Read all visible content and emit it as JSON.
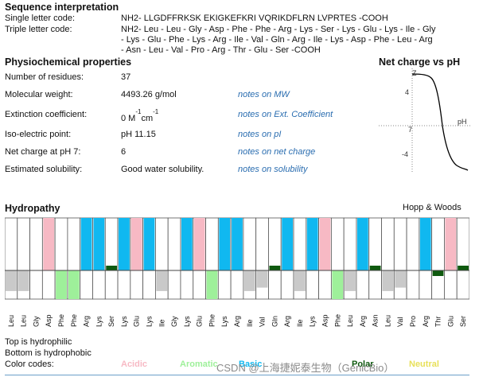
{
  "seq": {
    "title": "Sequence interpretation",
    "single_label": "Single letter code:",
    "single_value": "NH2- LLGDFFRKSK EKIGKEFKRI VQRIKDFLRN LVPRTES -COOH",
    "triple_label": "Triple letter code:",
    "triple_lines": [
      "NH2- Leu - Leu - Gly - Asp - Phe - Phe - Arg - Lys - Ser - Lys - Glu - Lys - Ile - Gly",
      "- Lys - Glu - Phe - Lys - Arg - Ile - Val - Gln - Arg - Ile - Lys - Asp - Phe - Leu - Arg",
      "- Asn - Leu - Val - Pro - Arg - Thr - Glu - Ser -COOH"
    ]
  },
  "phys": {
    "title": "Physiochemical properties",
    "rows": [
      {
        "label": "Number of residues:",
        "value": "37",
        "note": ""
      },
      {
        "label": "Molecular weight:",
        "value": "4493.26 g/mol",
        "note": "notes on MW"
      },
      {
        "label": "Extinction coefficient:",
        "value": "0 M",
        "note": "notes on Ext. Coefficient"
      },
      {
        "label": "Iso-electric point:",
        "value": "pH 11.15",
        "note": "notes on pI"
      },
      {
        "label": "Net charge at pH 7:",
        "value": "6",
        "note": "notes on net charge"
      },
      {
        "label": "Estimated solubility:",
        "value": "Good water solubility.",
        "note": "notes on solubility"
      }
    ],
    "ext_sup1": "-1",
    "ext_mid": "cm",
    "ext_sup2": "-1"
  },
  "netcharge": {
    "title": "Net charge vs pH",
    "y_label": "Z",
    "x_label": "pH",
    "tick_y_top": "4",
    "tick_x_mid": "7",
    "tick_y_bottom": "-4"
  },
  "hydropathy": {
    "title": "Hydropathy",
    "scale": "Hopp & Woods",
    "note_top": "Top is hydrophilic",
    "note_bottom": "Bottom is hydrophobic",
    "codes_label": "Color codes:",
    "codes": {
      "acidic": "Acidic",
      "aromatic": "Aromatic",
      "basic": "Basic",
      "polar": "Polar",
      "neutral": "Neutral"
    },
    "colors": {
      "acidic": "#f7b9c4",
      "aromatic": "#9ef09a",
      "basic": "#10b8f0",
      "polar": "#0f5a0f",
      "neutral": "#c9c9c9",
      "neutral_label": "#e8e05a"
    },
    "residues": [
      {
        "name": "Leu",
        "type": "neutral",
        "value": -1.8
      },
      {
        "name": "Leu",
        "type": "neutral",
        "value": -1.8
      },
      {
        "name": "Gly",
        "type": "neutral",
        "value": 0.0
      },
      {
        "name": "Asp",
        "type": "acidic",
        "value": 3.0
      },
      {
        "name": "Phe",
        "type": "aromatic",
        "value": -2.5
      },
      {
        "name": "Phe",
        "type": "aromatic",
        "value": -2.5
      },
      {
        "name": "Arg",
        "type": "basic",
        "value": 3.0
      },
      {
        "name": "Lys",
        "type": "basic",
        "value": 3.0
      },
      {
        "name": "Ser",
        "type": "polar",
        "value": 0.3
      },
      {
        "name": "Lys",
        "type": "basic",
        "value": 3.0
      },
      {
        "name": "Glu",
        "type": "acidic",
        "value": 3.0
      },
      {
        "name": "Lys",
        "type": "basic",
        "value": 3.0
      },
      {
        "name": "Ile",
        "type": "neutral",
        "value": -1.8
      },
      {
        "name": "Gly",
        "type": "neutral",
        "value": 0.0
      },
      {
        "name": "Lys",
        "type": "basic",
        "value": 3.0
      },
      {
        "name": "Glu",
        "type": "acidic",
        "value": 3.0
      },
      {
        "name": "Phe",
        "type": "aromatic",
        "value": -2.5
      },
      {
        "name": "Lys",
        "type": "basic",
        "value": 3.0
      },
      {
        "name": "Arg",
        "type": "basic",
        "value": 3.0
      },
      {
        "name": "Ile",
        "type": "neutral",
        "value": -1.8
      },
      {
        "name": "Val",
        "type": "neutral",
        "value": -1.5
      },
      {
        "name": "Gln",
        "type": "polar",
        "value": 0.2
      },
      {
        "name": "Arg",
        "type": "basic",
        "value": 3.0
      },
      {
        "name": "Ile",
        "type": "neutral",
        "value": -1.8
      },
      {
        "name": "Lys",
        "type": "basic",
        "value": 3.0
      },
      {
        "name": "Asp",
        "type": "acidic",
        "value": 3.0
      },
      {
        "name": "Phe",
        "type": "aromatic",
        "value": -2.5
      },
      {
        "name": "Leu",
        "type": "neutral",
        "value": -1.8
      },
      {
        "name": "Arg",
        "type": "basic",
        "value": 3.0
      },
      {
        "name": "Asn",
        "type": "polar",
        "value": 0.2
      },
      {
        "name": "Leu",
        "type": "neutral",
        "value": -1.8
      },
      {
        "name": "Val",
        "type": "neutral",
        "value": -1.5
      },
      {
        "name": "Pro",
        "type": "neutral",
        "value": 0.0
      },
      {
        "name": "Arg",
        "type": "basic",
        "value": 3.0
      },
      {
        "name": "Thr",
        "type": "polar",
        "value": -0.4
      },
      {
        "name": "Glu",
        "type": "acidic",
        "value": 3.0
      },
      {
        "name": "Ser",
        "type": "polar",
        "value": 0.3
      }
    ]
  },
  "watermark": "CSDN @上海捷妮泰生物（GenicBio）"
}
